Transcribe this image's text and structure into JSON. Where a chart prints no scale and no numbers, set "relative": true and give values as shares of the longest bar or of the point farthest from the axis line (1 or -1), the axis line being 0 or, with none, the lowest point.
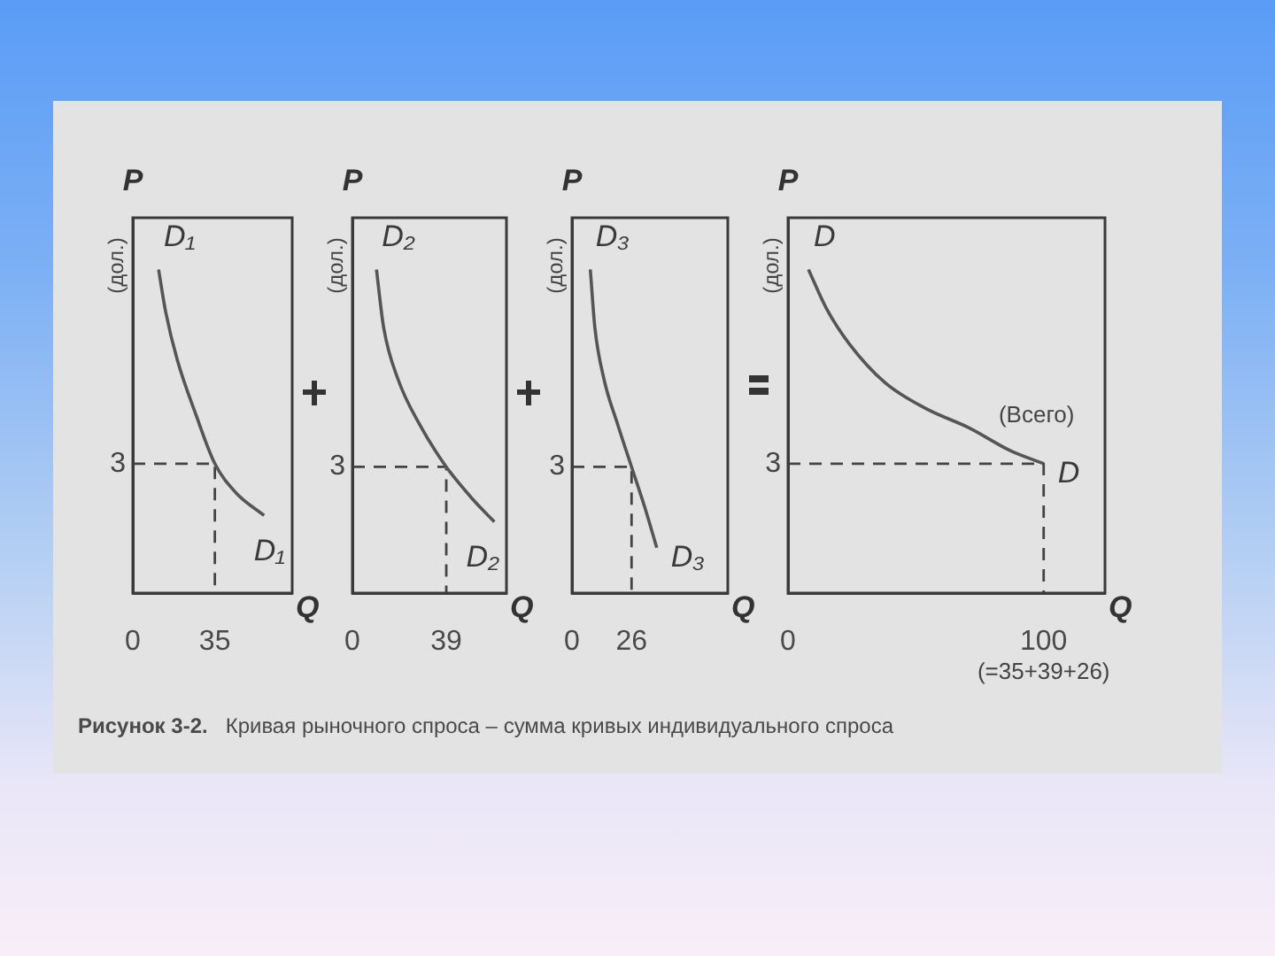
{
  "chart_data": [
    {
      "type": "line",
      "relative": true,
      "xlabel": "Q",
      "ylabel": "P",
      "annotations": [
        "(дол.)",
        "3"
      ],
      "xlim": [
        0,
        68
      ],
      "xticks": [
        0,
        35
      ],
      "series": [
        {
          "name": "D₁",
          "color": "#555555",
          "x": [
            11,
            14,
            19,
            27,
            35,
            44,
            56
          ],
          "values": [
            1,
            0.87,
            0.72,
            0.55,
            0.4,
            0.31,
            0.24
          ]
        },
        {
          "color": "#444444",
          "line_style": "dashed",
          "x": [
            0,
            35,
            35
          ],
          "values": [
            0.4,
            0.4,
            0
          ]
        }
      ]
    },
    {
      "type": "line",
      "relative": true,
      "xlabel": "Q",
      "ylabel": "P",
      "annotations": [
        "(дол.)",
        "3"
      ],
      "xlim": [
        0,
        64
      ],
      "xticks": [
        0,
        39
      ],
      "series": [
        {
          "name": "D₂",
          "color": "#555555",
          "x": [
            10,
            13,
            19,
            28,
            39,
            50,
            59
          ],
          "values": [
            1,
            0.82,
            0.66,
            0.52,
            0.39,
            0.29,
            0.22
          ]
        },
        {
          "color": "#444444",
          "line_style": "dashed",
          "x": [
            0,
            39,
            39
          ],
          "values": [
            0.39,
            0.39,
            0
          ]
        }
      ]
    },
    {
      "type": "line",
      "relative": true,
      "xlabel": "Q",
      "ylabel": "P",
      "annotations": [
        "(дол.)",
        "3"
      ],
      "xlim": [
        0,
        68
      ],
      "xticks": [
        0,
        26
      ],
      "series": [
        {
          "name": "D₃",
          "color": "#555555",
          "x": [
            8,
            10,
            14,
            20,
            26,
            32,
            37
          ],
          "values": [
            1,
            0.82,
            0.66,
            0.52,
            0.39,
            0.26,
            0.14
          ]
        },
        {
          "color": "#444444",
          "line_style": "dashed",
          "x": [
            0,
            26,
            26
          ],
          "values": [
            0.39,
            0.39,
            0
          ]
        }
      ]
    },
    {
      "type": "line",
      "relative": true,
      "xlabel": "Q",
      "ylabel": "P",
      "annotations": [
        "(дол.)",
        "3",
        {
          "text": "(Всего)",
          "x": 100,
          "y": 0.4
        },
        "(=35+39+26)"
      ],
      "xlim": [
        0,
        124
      ],
      "xticks": [
        0,
        100
      ],
      "series": [
        {
          "name": "D",
          "color": "#555555",
          "x": [
            8,
            15,
            24,
            38,
            54,
            71,
            87,
            100
          ],
          "values": [
            1,
            0.88,
            0.77,
            0.65,
            0.57,
            0.51,
            0.44,
            0.4
          ]
        },
        {
          "color": "#444444",
          "line_style": "dashed",
          "x": [
            0,
            100,
            100
          ],
          "values": [
            0.4,
            0.4,
            0
          ]
        }
      ]
    },
    {
      "type": "other",
      "annotations": [
        "Рисунок 3-2.",
        "Кривая рыночного спроса – сумма кривых индивидуального спроса"
      ]
    }
  ]
}
